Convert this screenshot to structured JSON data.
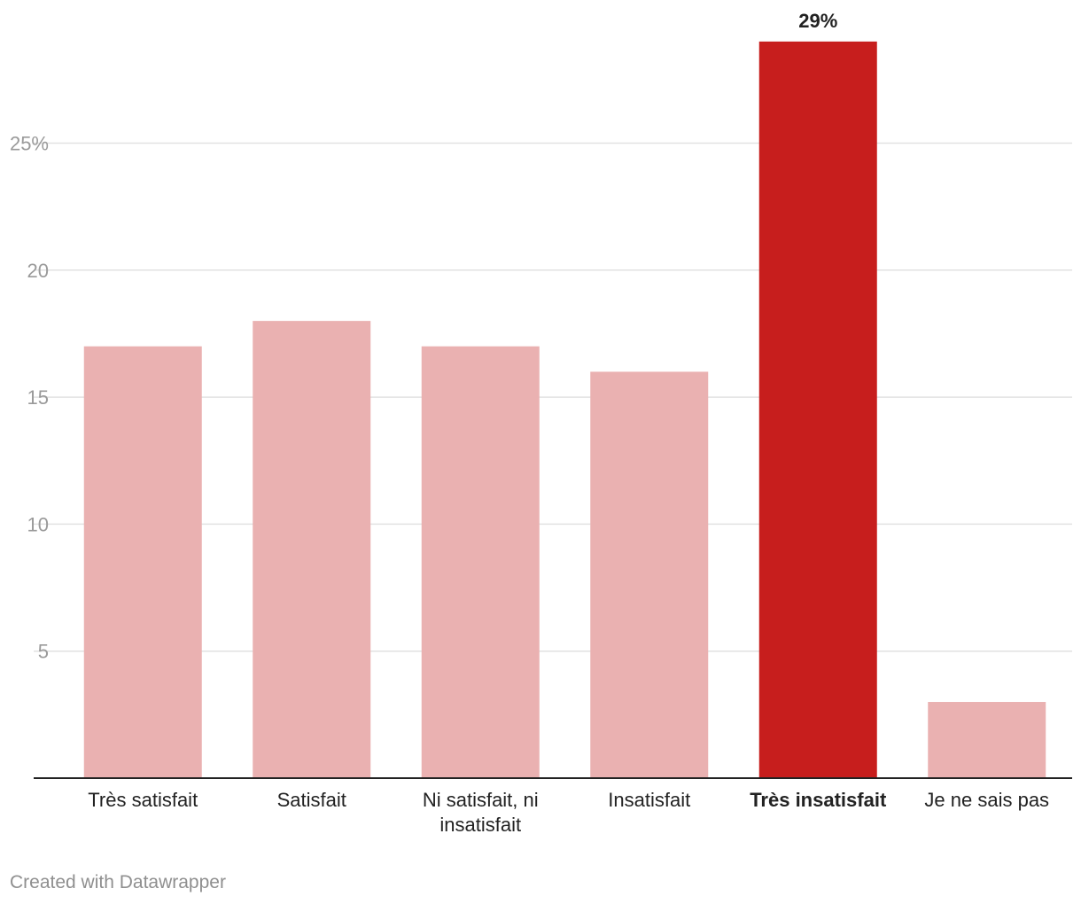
{
  "chart_data": {
    "type": "bar",
    "categories": [
      "Très satisfait",
      "Satisfait",
      "Ni satisfait, ni insatisfait",
      "Insatisfait",
      "Très insatisfait",
      "Je ne sais pas"
    ],
    "category_lines": [
      [
        "Très satisfait"
      ],
      [
        "Satisfait"
      ],
      [
        "Ni satisfait, ni",
        "insatisfait"
      ],
      [
        "Insatisfait"
      ],
      [
        "Très insatisfait"
      ],
      [
        "Je ne sais pas"
      ]
    ],
    "values": [
      17,
      18,
      17,
      16,
      29,
      3
    ],
    "highlight_index": 4,
    "highlight_label": "29%",
    "yticks": [
      {
        "value": 5,
        "label": "5"
      },
      {
        "value": 10,
        "label": "10"
      },
      {
        "value": 15,
        "label": "15"
      },
      {
        "value": 20,
        "label": "20"
      },
      {
        "value": 25,
        "label": "25%"
      }
    ],
    "ylim": [
      0,
      29
    ],
    "grid": true,
    "title": "",
    "xlabel": "",
    "ylabel": "",
    "colors": {
      "bar": "#eab1b1",
      "highlight": "#c71e1d",
      "grid": "#e2e2e2",
      "axis": "#222222",
      "tick_text": "#9a9a9a",
      "label_text": "#222222"
    }
  },
  "footer": {
    "credit": "Created with Datawrapper"
  }
}
